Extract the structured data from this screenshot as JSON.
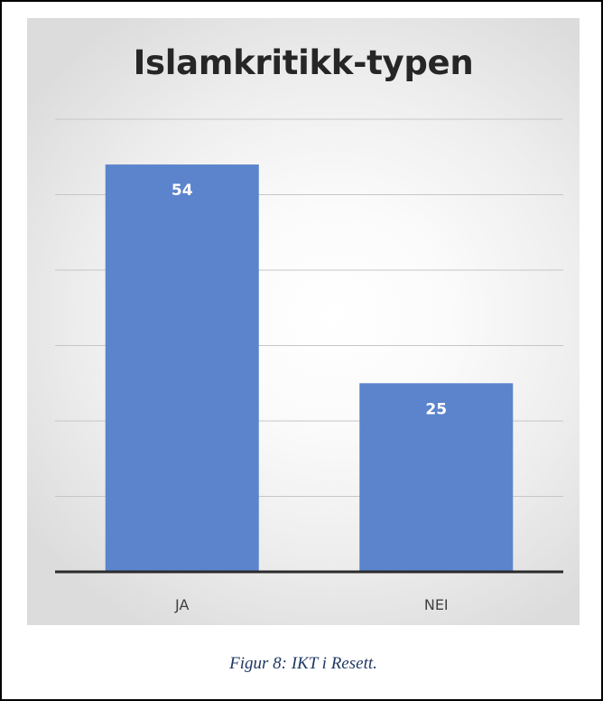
{
  "chart_data": {
    "type": "bar",
    "title": "Islamkritikk-typen",
    "categories": [
      "JA",
      "NEI"
    ],
    "values": [
      54,
      25
    ],
    "data_labels": [
      "54",
      "25"
    ],
    "xlabel": "",
    "ylabel": "",
    "ylim": [
      0,
      60
    ],
    "gridlines": [
      10,
      20,
      30,
      40,
      50,
      60
    ],
    "grid": true,
    "legend": "none",
    "bar_color": "#5b84cc"
  },
  "caption": "Figur 8: IKT i Resett."
}
